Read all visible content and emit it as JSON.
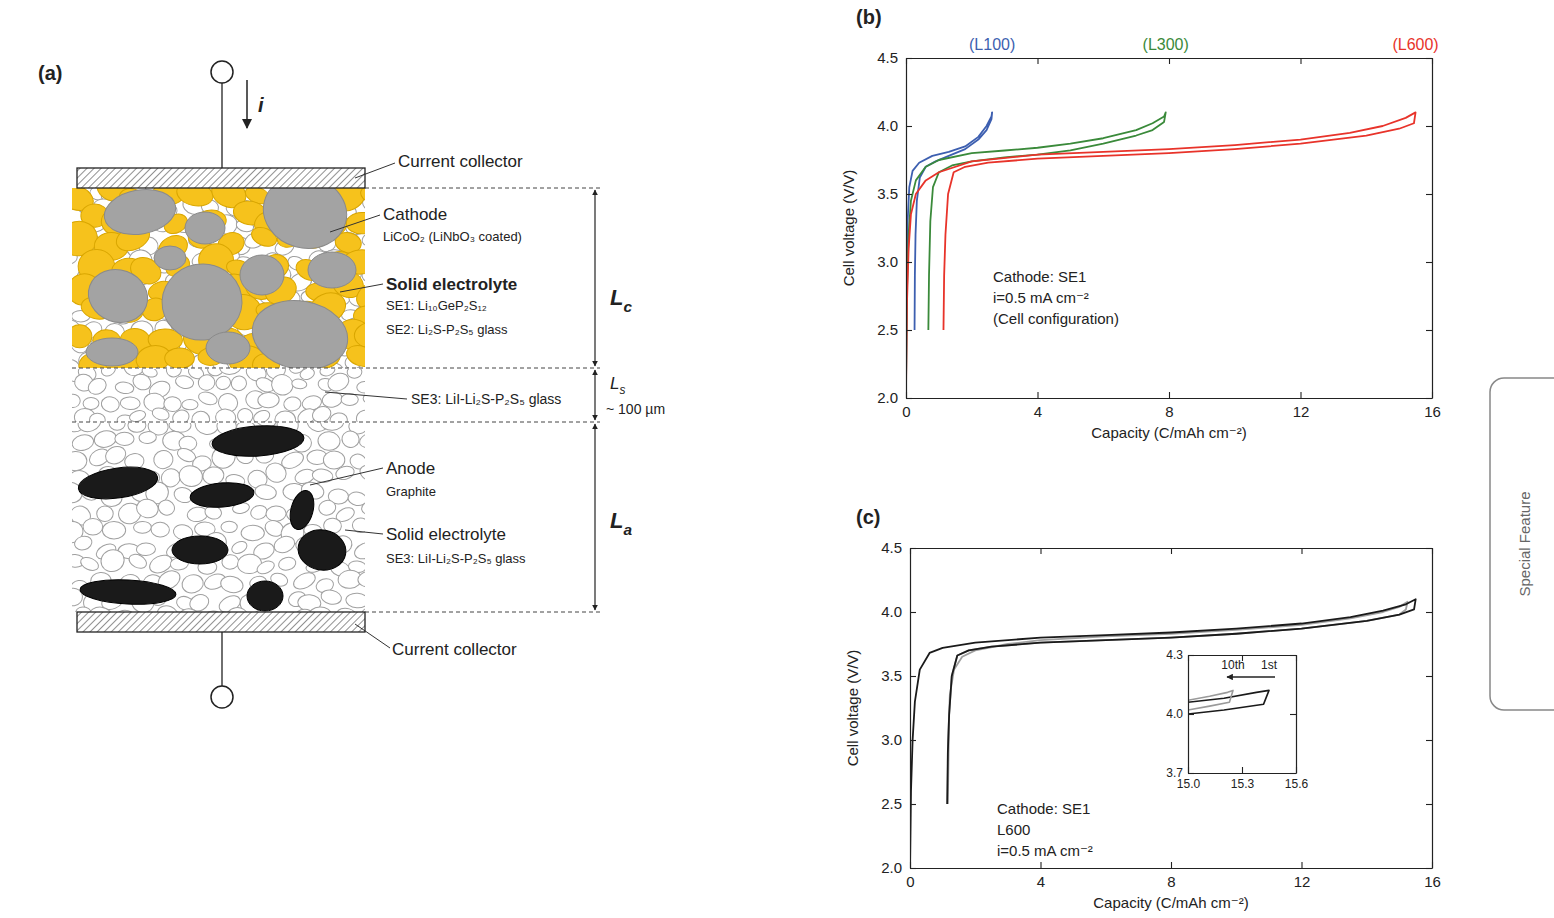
{
  "figure_labels": [
    "(a)",
    "(b)",
    "(c)"
  ],
  "side_label": "Special Feature",
  "diagram": {
    "current_label": "i",
    "top_collector": "Current collector",
    "bottom_collector": "Current collector",
    "cathode": {
      "title": "Cathode",
      "material": "LiCoO₂ (LiNbO₃ coated)"
    },
    "cathode_electrolyte": {
      "title": "Solid electrolyte",
      "lines": [
        "SE1: Li₁₀GeP₂S₁₂",
        "SE2: Li₂S-P₂S₅ glass"
      ]
    },
    "separator": {
      "label": "SE3: LiI-Li₂S-P₂S₅ glass"
    },
    "anode": {
      "title": "Anode",
      "material": "Graphite"
    },
    "anode_electrolyte": {
      "title": "Solid electrolyte",
      "lines": [
        "SE3: LiI-Li₂S-P₂S₅ glass"
      ]
    },
    "dimensions": [
      {
        "symbol": "L",
        "subscript": "c"
      },
      {
        "symbol": "L",
        "subscript": "s",
        "note": "~ 100 µm"
      },
      {
        "symbol": "L",
        "subscript": "a"
      }
    ]
  },
  "chart_data": [
    {
      "type": "line",
      "xlabel": "Capacity (C/mAh cm⁻²)",
      "ylabel": "Cell voltage (V/V)",
      "xlim": [
        0,
        16
      ],
      "xticks": [
        0,
        4,
        8,
        12,
        16
      ],
      "ylim": [
        2,
        4.5
      ],
      "yticks": [
        {
          "value": 2,
          "label": "2.0"
        },
        2.5,
        {
          "value": 3,
          "label": "3.0"
        },
        3.5,
        {
          "value": 4,
          "label": "4.0"
        },
        4.5
      ],
      "annotation": [
        "Cathode: SE1",
        "i=0.5 mA cm⁻²",
        "(Cell configuration)"
      ],
      "series": [
        {
          "name": "(L100)",
          "color": "#3d5fb0",
          "x": [
            0,
            0.02,
            0.05,
            0.1,
            0.2,
            0.4,
            0.8,
            1.3,
            1.8,
            2.2,
            2.45,
            2.6,
            2.62,
            2.6,
            2.45,
            2.2,
            1.8,
            1.3,
            0.9,
            0.6,
            0.42,
            0.33,
            0.29,
            0.27,
            0.26
          ],
          "values": [
            2.05,
            2.8,
            3.3,
            3.55,
            3.67,
            3.73,
            3.78,
            3.81,
            3.85,
            3.92,
            4.0,
            4.07,
            4.1,
            4.05,
            3.97,
            3.9,
            3.83,
            3.78,
            3.74,
            3.7,
            3.62,
            3.45,
            3.2,
            2.9,
            2.5
          ]
        },
        {
          "name": "(L300)",
          "color": "#3a8a3a",
          "x": [
            0,
            0.03,
            0.08,
            0.15,
            0.3,
            0.6,
            1.0,
            2.0,
            3.0,
            4.0,
            5.0,
            6.0,
            7.0,
            7.5,
            7.85,
            7.9,
            7.85,
            7.5,
            7.0,
            6.0,
            5.0,
            4.0,
            3.0,
            2.0,
            1.4,
            1.0,
            0.82,
            0.74,
            0.7,
            0.68
          ],
          "values": [
            2.1,
            2.8,
            3.2,
            3.45,
            3.6,
            3.7,
            3.75,
            3.8,
            3.82,
            3.84,
            3.87,
            3.91,
            3.97,
            4.02,
            4.07,
            4.1,
            4.03,
            3.97,
            3.93,
            3.87,
            3.82,
            3.79,
            3.77,
            3.74,
            3.71,
            3.66,
            3.55,
            3.3,
            2.9,
            2.5
          ]
        },
        {
          "name": "(L600)",
          "color": "#e8332a",
          "x": [
            0,
            0.03,
            0.08,
            0.15,
            0.3,
            0.6,
            1.0,
            2.0,
            4.0,
            6.0,
            8.0,
            10.0,
            12.0,
            13.5,
            14.5,
            15.2,
            15.5,
            15.45,
            15.0,
            14.0,
            12.0,
            10.0,
            8.0,
            6.0,
            4.0,
            2.5,
            1.8,
            1.45,
            1.28,
            1.2,
            1.16,
            1.14
          ],
          "values": [
            2.05,
            2.7,
            3.1,
            3.35,
            3.5,
            3.6,
            3.66,
            3.74,
            3.79,
            3.81,
            3.83,
            3.86,
            3.9,
            3.95,
            4.0,
            4.06,
            4.1,
            4.02,
            3.98,
            3.93,
            3.87,
            3.83,
            3.8,
            3.78,
            3.76,
            3.73,
            3.7,
            3.66,
            3.5,
            3.2,
            2.9,
            2.5
          ]
        }
      ]
    },
    {
      "type": "line",
      "xlabel": "Capacity (C/mAh cm⁻²)",
      "ylabel": "Cell voltage (V/V)",
      "xlim": [
        0,
        16
      ],
      "xticks": [
        0,
        4,
        8,
        12,
        16
      ],
      "ylim": [
        2,
        4.5
      ],
      "yticks": [
        {
          "value": 2,
          "label": "2.0"
        },
        2.5,
        {
          "value": 3,
          "label": "3.0"
        },
        3.5,
        {
          "value": 4,
          "label": "4.0"
        },
        4.5
      ],
      "annotation": [
        "Cathode: SE1",
        "L600",
        "i=0.5 mA cm⁻²"
      ],
      "series": [
        {
          "color": "#a0a0a0",
          "x": [
            1.15,
            1.17,
            1.22,
            1.35,
            1.6,
            2.0,
            3.0,
            4.0,
            6.0,
            8.0,
            10.0,
            12.0,
            13.5,
            14.5,
            15.0,
            15.25,
            15.2,
            15.0,
            14.0,
            12.0,
            10.0,
            8.0,
            6.0,
            4.0,
            2.5,
            1.8,
            1.45,
            1.28,
            1.2,
            1.16
          ],
          "values": [
            2.5,
            3.0,
            3.35,
            3.55,
            3.65,
            3.7,
            3.75,
            3.78,
            3.81,
            3.83,
            3.86,
            3.9,
            3.95,
            4.0,
            4.04,
            4.08,
            4.02,
            3.98,
            3.93,
            3.87,
            3.83,
            3.8,
            3.78,
            3.76,
            3.73,
            3.7,
            3.66,
            3.5,
            3.2,
            2.5
          ]
        },
        {
          "color": "#1a1a1a",
          "x": [
            0,
            0.03,
            0.08,
            0.15,
            0.3,
            0.6,
            1.0,
            2.0,
            4.0,
            6.0,
            8.0,
            10.0,
            12.0,
            13.5,
            14.5,
            15.2,
            15.5,
            15.45,
            15.0,
            14.0,
            12.0,
            10.0,
            8.0,
            6.0,
            4.0,
            2.5,
            1.8,
            1.45,
            1.28,
            1.2,
            1.16,
            1.14
          ],
          "values": [
            2.0,
            2.6,
            3.0,
            3.3,
            3.55,
            3.68,
            3.72,
            3.76,
            3.8,
            3.82,
            3.84,
            3.87,
            3.91,
            3.96,
            4.01,
            4.06,
            4.1,
            4.02,
            3.98,
            3.93,
            3.87,
            3.83,
            3.8,
            3.78,
            3.76,
            3.73,
            3.7,
            3.66,
            3.5,
            3.2,
            2.9,
            2.5
          ]
        }
      ],
      "inset": {
        "xlim": [
          15,
          15.6
        ],
        "xticks": [
          {
            "value": 15,
            "label": "15.0"
          },
          15.3,
          15.6
        ],
        "ylim": [
          3.7,
          4.3
        ],
        "yticks": [
          3.7,
          {
            "value": 4,
            "label": "4.0"
          },
          4.3
        ],
        "series": [
          {
            "name": "1st",
            "color": "#1a1a1a",
            "x": [
              15.0,
              15.2,
              15.38,
              15.45,
              15.42,
              15.2,
              15.0
            ],
            "values": [
              4.06,
              4.08,
              4.11,
              4.12,
              4.05,
              4.02,
              4.0
            ]
          },
          {
            "name": "10th",
            "color": "#9a9a9a",
            "x": [
              15.0,
              15.12,
              15.22,
              15.25,
              15.23,
              15.12,
              15.0
            ],
            "values": [
              4.07,
              4.09,
              4.11,
              4.12,
              4.06,
              4.04,
              4.02
            ]
          }
        ]
      }
    }
  ]
}
